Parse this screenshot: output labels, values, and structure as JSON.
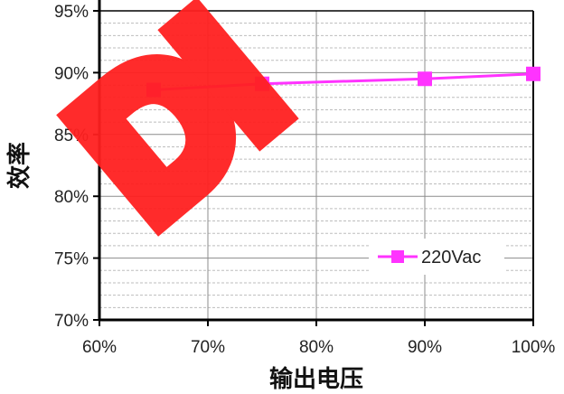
{
  "chart_data": {
    "type": "line",
    "xlabel": "输出电压",
    "ylabel": "效率",
    "x_ticks": [
      "60%",
      "70%",
      "80%",
      "90%",
      "100%"
    ],
    "y_ticks": [
      "70%",
      "75%",
      "80%",
      "85%",
      "90%",
      "95%"
    ],
    "xlim": [
      60,
      100
    ],
    "ylim": [
      70,
      95
    ],
    "grid": true,
    "legend": "lower-right",
    "series": [
      {
        "name": "220Vac",
        "color": "#ff33ff",
        "x": [
          65,
          75,
          90,
          100
        ],
        "y": [
          88.6,
          89.1,
          89.5,
          89.9
        ]
      }
    ],
    "watermark": {
      "text": "DI",
      "color": "#ff2020"
    }
  }
}
